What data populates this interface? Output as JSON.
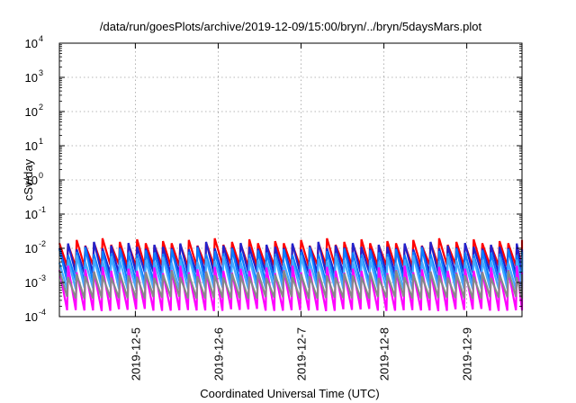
{
  "chart_data": {
    "type": "line",
    "title": "/data/run/goesPlots/archive/2019-12-09/15:00/bryn/../bryn/5daysMars.plot",
    "xlabel": "Coordinated Universal Time (UTC)",
    "ylabel": "cSv/day",
    "yscale": "log",
    "ylim": [
      0.0001,
      10000
    ],
    "y_ticks": [
      {
        "value": 0.0001,
        "base": "10",
        "exp": "-4"
      },
      {
        "value": 0.001,
        "base": "10",
        "exp": "-3"
      },
      {
        "value": 0.01,
        "base": "10",
        "exp": "-2"
      },
      {
        "value": 0.1,
        "base": "10",
        "exp": "-1"
      },
      {
        "value": 1,
        "base": "10",
        "exp": "0"
      },
      {
        "value": 10,
        "base": "10",
        "exp": "1"
      },
      {
        "value": 100,
        "base": "10",
        "exp": "2"
      },
      {
        "value": 1000,
        "base": "10",
        "exp": "3"
      },
      {
        "value": 10000,
        "base": "10",
        "exp": "4"
      }
    ],
    "xlim": [
      "2019-12-04 02:00",
      "2019-12-09 16:00"
    ],
    "x_ticks": [
      "2019-12-5",
      "2019-12-6",
      "2019-12-7",
      "2019-12-8",
      "2019-12-9"
    ],
    "grid": true,
    "pattern": "sawtooth",
    "sawtooth_period_hours": 2.5,
    "series": [
      {
        "color": "#ff0000",
        "peak": 0.014,
        "trough": 0.0028
      },
      {
        "color": "#2222cc",
        "peak": 0.011,
        "trough": 0.0017
      },
      {
        "color": "#0a7fff",
        "peak": 0.0075,
        "trough": 0.00095
      },
      {
        "color": "#44aaff",
        "peak": 0.0045,
        "trough": 0.0006
      },
      {
        "color": "#ff00ff",
        "peak": 0.0022,
        "trough": 0.00014
      },
      {
        "color": "#888888",
        "peak": 0.0016,
        "trough": 0.00032
      }
    ]
  }
}
